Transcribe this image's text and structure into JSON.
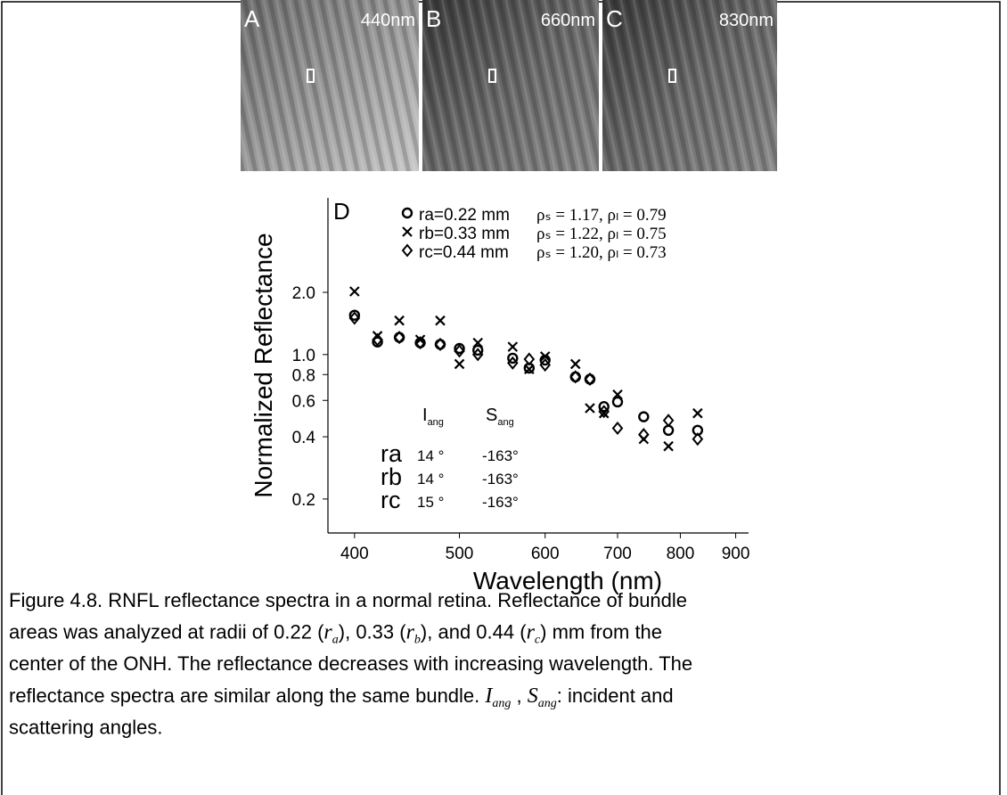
{
  "panels": [
    {
      "letter": "A",
      "wavelength": "440nm"
    },
    {
      "letter": "B",
      "wavelength": "660nm"
    },
    {
      "letter": "C",
      "wavelength": "830nm"
    }
  ],
  "chart_data": {
    "type": "scatter",
    "panel_label": "D",
    "x_label": "Wavelength (nm)",
    "y_label": "Normalized Reflectance",
    "x_log": true,
    "y_log": true,
    "xlim": [
      378,
      925
    ],
    "ylim": [
      0.137,
      5.73
    ],
    "xticks": [
      400,
      500,
      600,
      700,
      800,
      900
    ],
    "yticks": [
      0.2,
      0.4,
      0.6,
      0.8,
      {
        "value": 1,
        "label": "1.0"
      },
      {
        "value": 2,
        "label": "2.0"
      }
    ],
    "x": [
      400,
      420,
      440,
      460,
      480,
      500,
      520,
      560,
      580,
      600,
      640,
      660,
      680,
      700,
      740,
      780,
      830
    ],
    "series": [
      {
        "name": "ra=0.22 mm",
        "fit": "ρₛ = 1.17, ρₗ = 0.79",
        "marker": "circle",
        "color": "#000000",
        "values": [
          1.55,
          1.15,
          1.21,
          1.14,
          1.12,
          1.07,
          1.05,
          0.96,
          0.86,
          0.94,
          0.78,
          0.76,
          0.56,
          0.59,
          0.5,
          0.43,
          0.43
        ]
      },
      {
        "name": "rb=0.33 mm",
        "fit": "ρₛ = 1.22, ρₗ = 0.75",
        "marker": "cross",
        "color": "#000000",
        "values": [
          2.02,
          1.23,
          1.46,
          1.18,
          1.46,
          0.9,
          1.14,
          1.09,
          0.85,
          0.98,
          0.9,
          0.55,
          0.52,
          0.64,
          0.39,
          0.36,
          0.52
        ]
      },
      {
        "name": "rc=0.44 mm",
        "fit": "ρₛ = 1.20, ρₗ = 0.73",
        "marker": "diamond",
        "color": "#000000",
        "values": [
          1.5,
          1.18,
          1.21,
          1.14,
          1.12,
          1.04,
          1.0,
          0.91,
          0.95,
          0.89,
          0.78,
          0.76,
          0.53,
          0.44,
          0.41,
          0.48,
          0.39
        ]
      }
    ],
    "angle_table": {
      "header": [
        [
          "I",
          "ang"
        ],
        [
          "S",
          "ang"
        ]
      ],
      "rows": [
        [
          "ra",
          "14 °",
          "-163°"
        ],
        [
          "rb",
          "14 °",
          "-163°"
        ],
        [
          "rc",
          "15 °",
          "-163°"
        ]
      ]
    }
  },
  "caption": [
    [
      "Figure 4.8. RNFL reflectance spectra in a normal retina. Reflectance of bundle"
    ],
    [
      "areas was analyzed at radii of 0.22 (",
      {
        "var": "r",
        "sub": "a"
      },
      "), 0.33 (",
      {
        "var": "r",
        "sub": "b"
      },
      "), and 0.44 (",
      {
        "var": "r",
        "sub": "c"
      },
      ") mm from the"
    ],
    [
      "center of the ONH. The reflectance decreases with increasing wavelength. The"
    ],
    [
      "reflectance spectra are similar along the same bundle. ",
      {
        "var": "I",
        "sub": "ang"
      },
      " , ",
      {
        "var": "S",
        "sub": "ang"
      },
      ": incident and"
    ],
    [
      "scattering angles."
    ]
  ]
}
